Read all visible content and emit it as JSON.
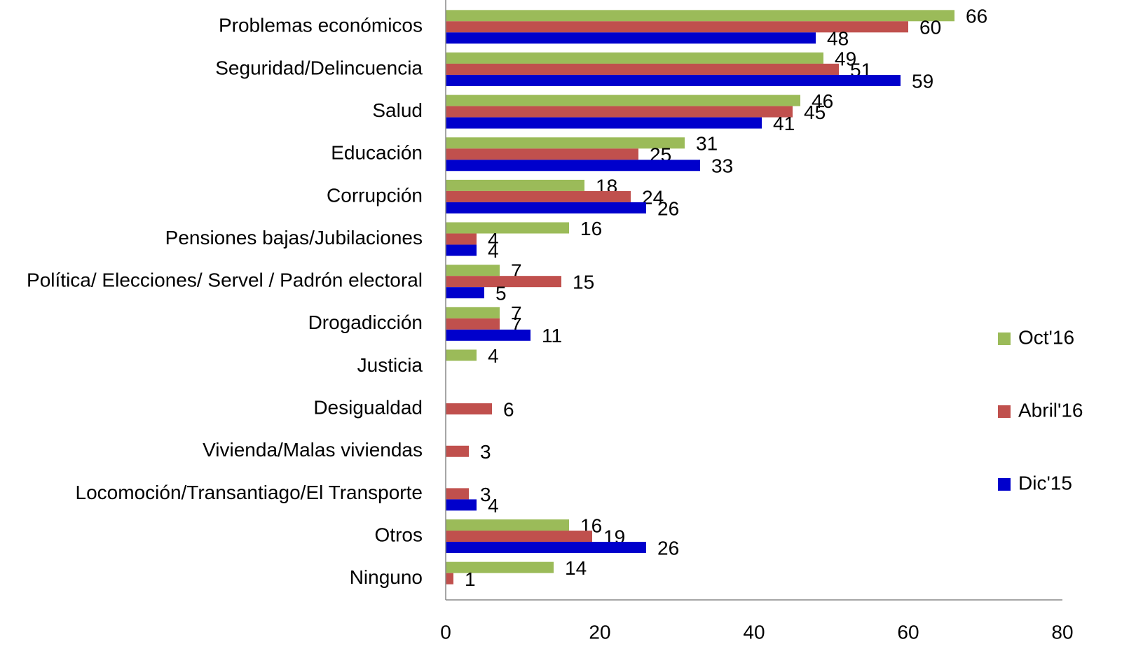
{
  "chart_data": {
    "type": "bar",
    "orientation": "horizontal",
    "categories": [
      "Problemas económicos",
      "Seguridad/Delincuencia",
      "Salud",
      "Educación",
      "Corrupción ",
      "Pensiones bajas/Jubilaciones",
      "Política/ Elecciones/ Servel / Padrón electoral",
      "Drogadicción ",
      "Justicia",
      "Desigualdad",
      "Vivienda/Malas viviendas",
      "Locomoción/Transantiago/El Transporte",
      "Otros",
      "Ninguno"
    ],
    "series": [
      {
        "name": "Oct'16",
        "color": "#9bbb59",
        "values": [
          66,
          49,
          46,
          31,
          18,
          16,
          7,
          7,
          4,
          null,
          null,
          null,
          16,
          14
        ]
      },
      {
        "name": "Abril'16",
        "color": "#c0504d",
        "values": [
          60,
          51,
          45,
          25,
          24,
          4,
          15,
          7,
          null,
          6,
          3,
          3,
          19,
          1
        ]
      },
      {
        "name": "Dic'15",
        "color": "#0000cc",
        "values": [
          48,
          59,
          41,
          33,
          26,
          4,
          5,
          11,
          null,
          null,
          null,
          4,
          26,
          null
        ]
      }
    ],
    "xlim": [
      0,
      80
    ],
    "xticks": [
      0,
      20,
      40,
      60,
      80
    ],
    "grid": false,
    "legend": "right"
  }
}
